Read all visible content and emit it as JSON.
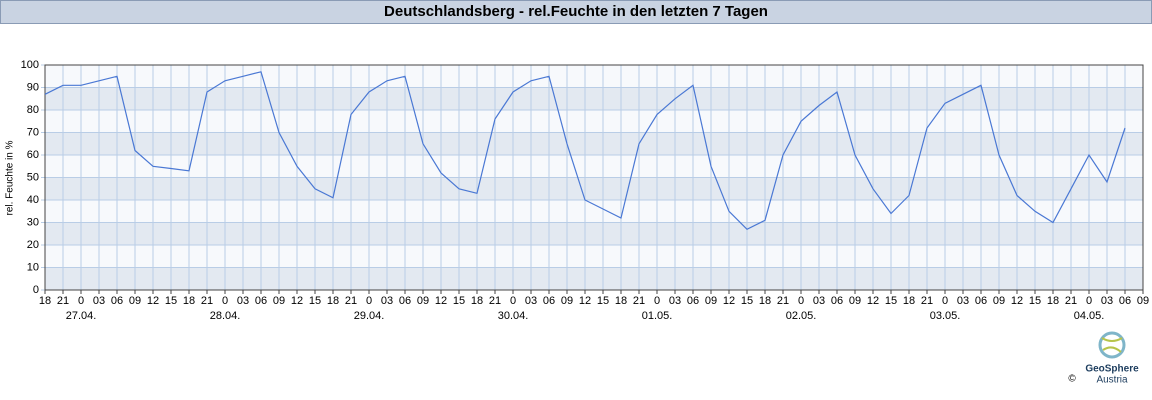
{
  "chart_data": {
    "type": "line",
    "title": "Deutschlandsberg - rel.Feuchte in den letzten 7 Tagen",
    "y_label": "rel. Feuchte in %",
    "categories": [
      "18",
      "21",
      "0",
      "03",
      "06",
      "09",
      "12",
      "15",
      "18",
      "21",
      "0",
      "03",
      "06",
      "09",
      "12",
      "15",
      "18",
      "21",
      "0",
      "03",
      "06",
      "09",
      "12",
      "15",
      "18",
      "21",
      "0",
      "03",
      "06",
      "09",
      "12",
      "15",
      "18",
      "21",
      "0",
      "03",
      "06",
      "09",
      "12",
      "15",
      "18",
      "21",
      "0",
      "03",
      "06",
      "09",
      "12",
      "15",
      "18",
      "21",
      "0",
      "03",
      "06",
      "09",
      "12",
      "15",
      "18",
      "21",
      "0",
      "03",
      "06",
      "09"
    ],
    "dates": [
      "27.04.",
      "28.04.",
      "29.04.",
      "30.04.",
      "01.05.",
      "02.05.",
      "03.05.",
      "04.05."
    ],
    "values": [
      87,
      91,
      91,
      93,
      95,
      62,
      55,
      54,
      53,
      88,
      93,
      95,
      97,
      70,
      55,
      45,
      41,
      78,
      88,
      93,
      95,
      65,
      52,
      45,
      43,
      76,
      88,
      93,
      95,
      65,
      40,
      36,
      32,
      65,
      78,
      85,
      91,
      55,
      35,
      27,
      31,
      60,
      75,
      82,
      88,
      60,
      45,
      34,
      42,
      72,
      83,
      87,
      91,
      60,
      42,
      35,
      30,
      45,
      60,
      48,
      72,
      null
    ],
    "color": "#4a78d4",
    "ylim": [
      0,
      100
    ],
    "yticks": [
      0,
      10,
      20,
      30,
      40,
      50,
      60,
      70,
      80,
      90,
      100
    ],
    "grid": true
  },
  "logo": {
    "name": "GeoSphere",
    "sub": "Austria",
    "copyright": "©"
  }
}
